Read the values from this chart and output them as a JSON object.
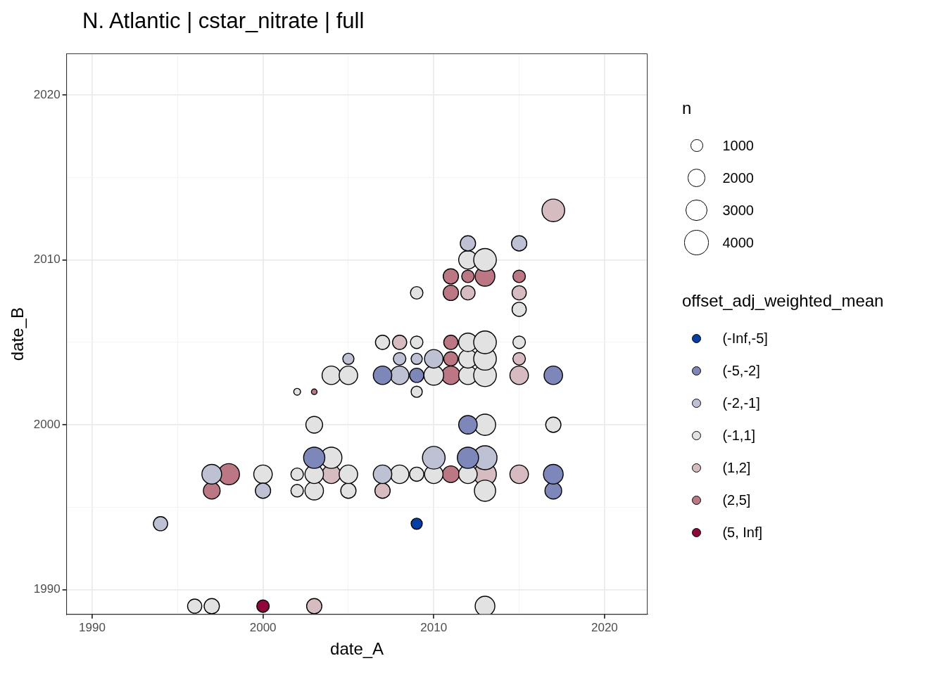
{
  "chart_data": {
    "type": "bubble",
    "title": "N. Atlantic | cstar_nitrate | full",
    "xlabel": "date_A",
    "ylabel": "date_B",
    "legend_title": "offset_adj_weighted_mean",
    "annotations": [
      "n"
    ],
    "size_legend": [
      1000,
      2000,
      3000,
      4000
    ],
    "legend": "right",
    "grid": true,
    "marker": "circle",
    "xlim": [
      1988.5,
      2022.5
    ],
    "ylim": [
      1988.5,
      2022.5
    ],
    "xticks": [
      1990,
      {
        "value": 1995,
        "label": null
      },
      2000,
      {
        "value": 2005,
        "label": null
      },
      2010,
      {
        "value": 2015,
        "label": null
      },
      2020
    ],
    "yticks": [
      1990,
      {
        "value": 1995,
        "label": null
      },
      2000,
      {
        "value": 2005,
        "label": null
      },
      2010,
      {
        "value": 2015,
        "label": null
      },
      2020
    ],
    "series": [
      {
        "name": "(-Inf,-5]",
        "color": "#023fa5",
        "x": [
          2009
        ],
        "values": [
          1994
        ],
        "sizes": [
          800
        ]
      },
      {
        "name": "(-5,-2]",
        "color": "#7d87b9",
        "x": [
          2017,
          2017,
          2003,
          2012,
          2012,
          2007,
          2009,
          2017
        ],
        "values": [
          1996,
          1997,
          1998,
          1998,
          2000,
          2003,
          2003,
          2003
        ],
        "sizes": [
          1800,
          2500,
          2900,
          2900,
          2200,
          2200,
          1300,
          2200
        ]
      },
      {
        "name": "(-2,-1]",
        "color": "#bec1d4",
        "x": [
          1994,
          2000,
          1997,
          2007,
          2010,
          2013,
          2008,
          2005,
          2008,
          2009,
          2010,
          2012,
          2015
        ],
        "values": [
          1994,
          1996,
          1997,
          1997,
          1998,
          1998,
          2003,
          2004,
          2004,
          2004,
          2004,
          2011,
          2011
        ],
        "sizes": [
          1300,
          1500,
          2500,
          2200,
          3300,
          3700,
          2200,
          800,
          1000,
          800,
          2200,
          1500,
          1500
        ]
      },
      {
        "name": "(-1,1]",
        "color": "#e2e2e2",
        "x": [
          1996,
          1997,
          2013,
          2002,
          2003,
          2005,
          2013,
          2000,
          2002,
          2003,
          2005,
          2008,
          2009,
          2010,
          2012,
          2004,
          2003,
          2013,
          2017,
          2002,
          2009,
          2004,
          2005,
          2010,
          2012,
          2013,
          2012,
          2013,
          2007,
          2009,
          2012,
          2013,
          2015,
          2015,
          2009,
          2012,
          2013
        ],
        "values": [
          1989,
          1989,
          1989,
          1996,
          1996,
          1996,
          1996,
          1997,
          1997,
          1997,
          1997,
          1997,
          1997,
          1997,
          1997,
          1998,
          2000,
          2000,
          2000,
          2002,
          2002,
          2003,
          2003,
          2003,
          2003,
          2003,
          2004,
          2004,
          2005,
          2005,
          2005,
          2005,
          2005,
          2007,
          2008,
          2010,
          2010
        ],
        "sizes": [
          1300,
          1500,
          2500,
          1000,
          2200,
          1500,
          2900,
          2200,
          1000,
          2200,
          2200,
          2200,
          1300,
          2200,
          2200,
          2900,
          1800,
          2900,
          1500,
          300,
          800,
          2200,
          2200,
          2500,
          2200,
          3300,
          2200,
          3300,
          1300,
          1000,
          2200,
          3300,
          1000,
          1300,
          1000,
          2200,
          3300
        ]
      },
      {
        "name": "(1,2]",
        "color": "#d6bcc0",
        "x": [
          2003,
          2007,
          2004,
          2013,
          2015,
          2015,
          2015,
          2008,
          2012,
          2015,
          2017
        ],
        "values": [
          1989,
          1996,
          1997,
          1997,
          1997,
          2003,
          2004,
          2005,
          2008,
          2008,
          2013
        ],
        "sizes": [
          1500,
          1500,
          2200,
          3300,
          2200,
          2200,
          1000,
          1300,
          1300,
          1300,
          3300
        ]
      },
      {
        "name": "(2,5]",
        "color": "#bb7784",
        "x": [
          1997,
          1998,
          2011,
          2003,
          2011,
          2011,
          2011,
          2011,
          2011,
          2012,
          2013,
          2015
        ],
        "values": [
          1996,
          1997,
          1997,
          2002,
          2003,
          2004,
          2005,
          2008,
          2009,
          2009,
          2009,
          2009
        ],
        "sizes": [
          1800,
          2900,
          1800,
          200,
          2200,
          1300,
          1300,
          1500,
          1500,
          1000,
          2500,
          1000
        ]
      },
      {
        "name": "(5, Inf]",
        "color": "#8e063b",
        "x": [
          2000
        ],
        "values": [
          1989
        ],
        "sizes": [
          1000
        ]
      }
    ]
  }
}
